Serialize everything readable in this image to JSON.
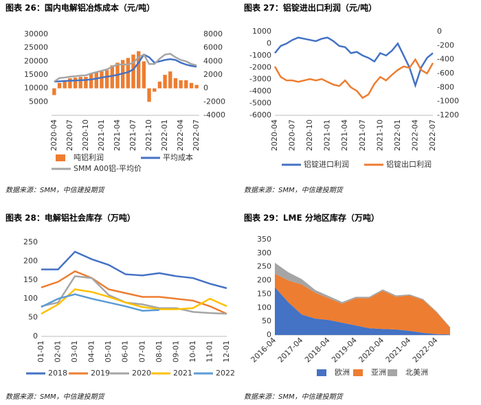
{
  "chart_data": [
    {
      "type": "combo",
      "title": "图表 26：国内电解铝冶炼成本（元/吨）",
      "source": "数据来源：SMM，中信建投期货",
      "x": [
        "2020-04",
        "2020-05",
        "2020-06",
        "2020-07",
        "2020-08",
        "2020-09",
        "2020-10",
        "2020-11",
        "2020-12",
        "2021-01",
        "2021-02",
        "2021-03",
        "2021-04",
        "2021-05",
        "2021-06",
        "2021-07",
        "2021-08",
        "2021-09",
        "2021-10",
        "2021-11",
        "2021-12",
        "2022-01",
        "2022-02",
        "2022-03",
        "2022-04",
        "2022-05",
        "2022-06",
        "2022-07"
      ],
      "xticks": [
        "2020-04",
        "2020-07",
        "2020-10",
        "2021-01",
        "2021-04",
        "2021-07",
        "2021-10",
        "2022-01",
        "2022-04",
        "2022-07"
      ],
      "ylim": [
        0,
        30000
      ],
      "yticks": [
        5000,
        10000,
        15000,
        20000,
        25000,
        30000
      ],
      "y2lim": [
        -4000,
        8000
      ],
      "y2ticks": [
        -4000,
        -2000,
        0,
        2000,
        4000,
        6000,
        8000
      ],
      "series": [
        {
          "name": "吨铝利润",
          "type": "bar",
          "axis": "y2",
          "color": "#ED7D31",
          "values": [
            -1000,
            800,
            1200,
            1500,
            1600,
            1700,
            1700,
            2200,
            2400,
            2500,
            2700,
            3400,
            3800,
            4200,
            4500,
            5000,
            5500,
            4000,
            -2000,
            -500,
            1000,
            2000,
            2500,
            1500,
            1200,
            1200,
            800,
            500
          ]
        },
        {
          "name": "平均成本",
          "type": "line",
          "color": "#4472C4",
          "values": [
            12500,
            12600,
            12700,
            12800,
            12900,
            13000,
            13100,
            13300,
            13600,
            14000,
            14300,
            14600,
            15000,
            15500,
            16000,
            17000,
            19500,
            22500,
            21500,
            19500,
            20000,
            20500,
            20800,
            20500,
            19500,
            18800,
            18300,
            18000
          ]
        },
        {
          "name": "SMM A00铝-平均价",
          "type": "line",
          "color": "#A5A5A5",
          "values": [
            12500,
            13800,
            14000,
            14300,
            14500,
            14700,
            14800,
            15500,
            16000,
            16500,
            17000,
            18000,
            18800,
            18800,
            18800,
            19500,
            21500,
            22500,
            19000,
            19000,
            21000,
            22500,
            22800,
            21500,
            20500,
            20000,
            19000,
            18500
          ]
        }
      ]
    },
    {
      "type": "line",
      "title": "图表 27：铝锭进出口利润（元/吨）",
      "source": "数据来源：SMM，中信建投期货",
      "x": [
        "2020-04",
        "2020-05",
        "2020-06",
        "2020-07",
        "2020-08",
        "2020-09",
        "2020-10",
        "2020-11",
        "2020-12",
        "2021-01",
        "2021-02",
        "2021-03",
        "2021-04",
        "2021-05",
        "2021-06",
        "2021-07",
        "2021-08",
        "2021-09",
        "2021-10",
        "2021-11",
        "2021-12",
        "2022-01",
        "2022-02",
        "2022-03",
        "2022-04",
        "2022-05",
        "2022-06",
        "2022-07"
      ],
      "xticks": [
        "2020-04",
        "2020-07",
        "2020-10",
        "2021-01",
        "2021-04",
        "2021-07",
        "2021-10",
        "2022-01",
        "2022-04",
        "2022-07"
      ],
      "ylim": [
        -6000,
        1000
      ],
      "yticks": [
        -6000,
        -5000,
        -4000,
        -3000,
        -2000,
        -1000,
        0,
        1000
      ],
      "y2lim": [
        -1200,
        0
      ],
      "y2ticks": [
        -1200,
        -1000,
        -800,
        -600,
        -400,
        -200,
        0
      ],
      "series": [
        {
          "name": "铝锭进口利润",
          "color": "#4472C4",
          "values": [
            -800,
            -200,
            0,
            300,
            500,
            400,
            300,
            200,
            400,
            500,
            200,
            -200,
            -300,
            -800,
            -700,
            -1000,
            -1200,
            -1500,
            -800,
            -1000,
            -600,
            0,
            -1000,
            -2000,
            -3500,
            -2000,
            -1200,
            -800
          ]
        },
        {
          "name": "铝锭出口利润",
          "axis": "y2",
          "color": "#ED7D31",
          "values": [
            -500,
            -650,
            -700,
            -700,
            -720,
            -700,
            -680,
            -700,
            -680,
            -720,
            -760,
            -780,
            -700,
            -800,
            -850,
            -950,
            -900,
            -750,
            -650,
            -700,
            -620,
            -550,
            -500,
            -520,
            -400,
            -550,
            -600,
            -450
          ]
        }
      ]
    },
    {
      "type": "line",
      "title": "图表 28：电解铝社会库存（万吨）",
      "source": "数据来源：SMM，中信建投期货",
      "categories": [
        "01-01",
        "02-01",
        "03-01",
        "04-01",
        "05-01",
        "06-01",
        "07-01",
        "08-01",
        "09-01",
        "10-01",
        "11-01",
        "12-01"
      ],
      "ylim": [
        0,
        250
      ],
      "yticks": [
        0,
        50,
        100,
        150,
        200,
        250
      ],
      "series": [
        {
          "name": "2018",
          "color": "#4472C4",
          "values": [
            178,
            178,
            225,
            205,
            190,
            165,
            162,
            168,
            160,
            155,
            140,
            128
          ]
        },
        {
          "name": "2019",
          "color": "#ED7D31",
          "values": [
            130,
            145,
            173,
            155,
            125,
            115,
            105,
            105,
            100,
            95,
            80,
            60
          ]
        },
        {
          "name": "2020",
          "color": "#A5A5A5",
          "values": [
            80,
            90,
            160,
            155,
            110,
            90,
            85,
            75,
            75,
            65,
            62,
            60
          ]
        },
        {
          "name": "2021",
          "color": "#FFC000",
          "values": [
            60,
            85,
            125,
            118,
            105,
            90,
            78,
            72,
            72,
            75,
            100,
            80
          ]
        },
        {
          "name": "2022",
          "color": "#5B9BD5",
          "values": [
            78,
            100,
            112,
            100,
            90,
            80,
            68,
            70,
            null,
            null,
            null,
            null
          ]
        }
      ]
    },
    {
      "type": "area",
      "title": "图表 29：LME 分地区库存（万吨）",
      "source": "数据来源：SMM，中信建投期货",
      "x": [
        "2016-04",
        "2016-10",
        "2017-04",
        "2017-10",
        "2018-04",
        "2018-10",
        "2019-04",
        "2019-10",
        "2020-04",
        "2020-10",
        "2021-04",
        "2021-10",
        "2022-04",
        "2022-10"
      ],
      "xticks": [
        "2016-04",
        "2017-04",
        "2018-04",
        "2019-04",
        "2020-04",
        "2021-04",
        "2022-04"
      ],
      "ylim": [
        0,
        350
      ],
      "yticks": [
        0,
        50,
        100,
        150,
        200,
        250,
        300,
        350
      ],
      "series": [
        {
          "name": "欧洲",
          "color": "#4472C4",
          "values": [
            175,
            120,
            75,
            60,
            55,
            45,
            35,
            25,
            22,
            20,
            15,
            8,
            3,
            2
          ]
        },
        {
          "name": "亚洲",
          "color": "#ED7D31",
          "values": [
            50,
            80,
            110,
            95,
            80,
            70,
            100,
            110,
            140,
            120,
            130,
            120,
            80,
            25
          ]
        },
        {
          "name": "北美洲",
          "color": "#A5A5A5",
          "values": [
            40,
            30,
            20,
            10,
            8,
            6,
            5,
            5,
            5,
            5,
            4,
            4,
            3,
            2
          ]
        }
      ]
    }
  ]
}
